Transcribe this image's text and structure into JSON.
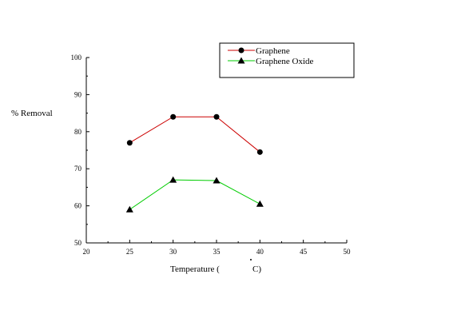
{
  "chart_data": {
    "type": "line",
    "title": "",
    "xlabel": "Temperature (",
    "xlabel_unit": "C)",
    "ylabel": "% Removal",
    "x": [
      25,
      30,
      35,
      40
    ],
    "xlim": [
      20,
      50
    ],
    "ylim": [
      50,
      100
    ],
    "x_ticks": [
      "20",
      "25",
      "30",
      "35",
      "40",
      "45",
      "50"
    ],
    "y_ticks": [
      "50",
      "60",
      "70",
      "80",
      "90",
      "100"
    ],
    "grid": false,
    "legend_position": "top-right",
    "series": [
      {
        "name": "Graphene",
        "values": [
          77,
          84,
          84,
          74.5
        ],
        "color": "#cc0000",
        "marker": "circle"
      },
      {
        "name": "Graphene Oxide",
        "values": [
          59,
          67,
          66.8,
          60.5
        ],
        "color": "#00cc00",
        "marker": "triangle"
      }
    ]
  }
}
